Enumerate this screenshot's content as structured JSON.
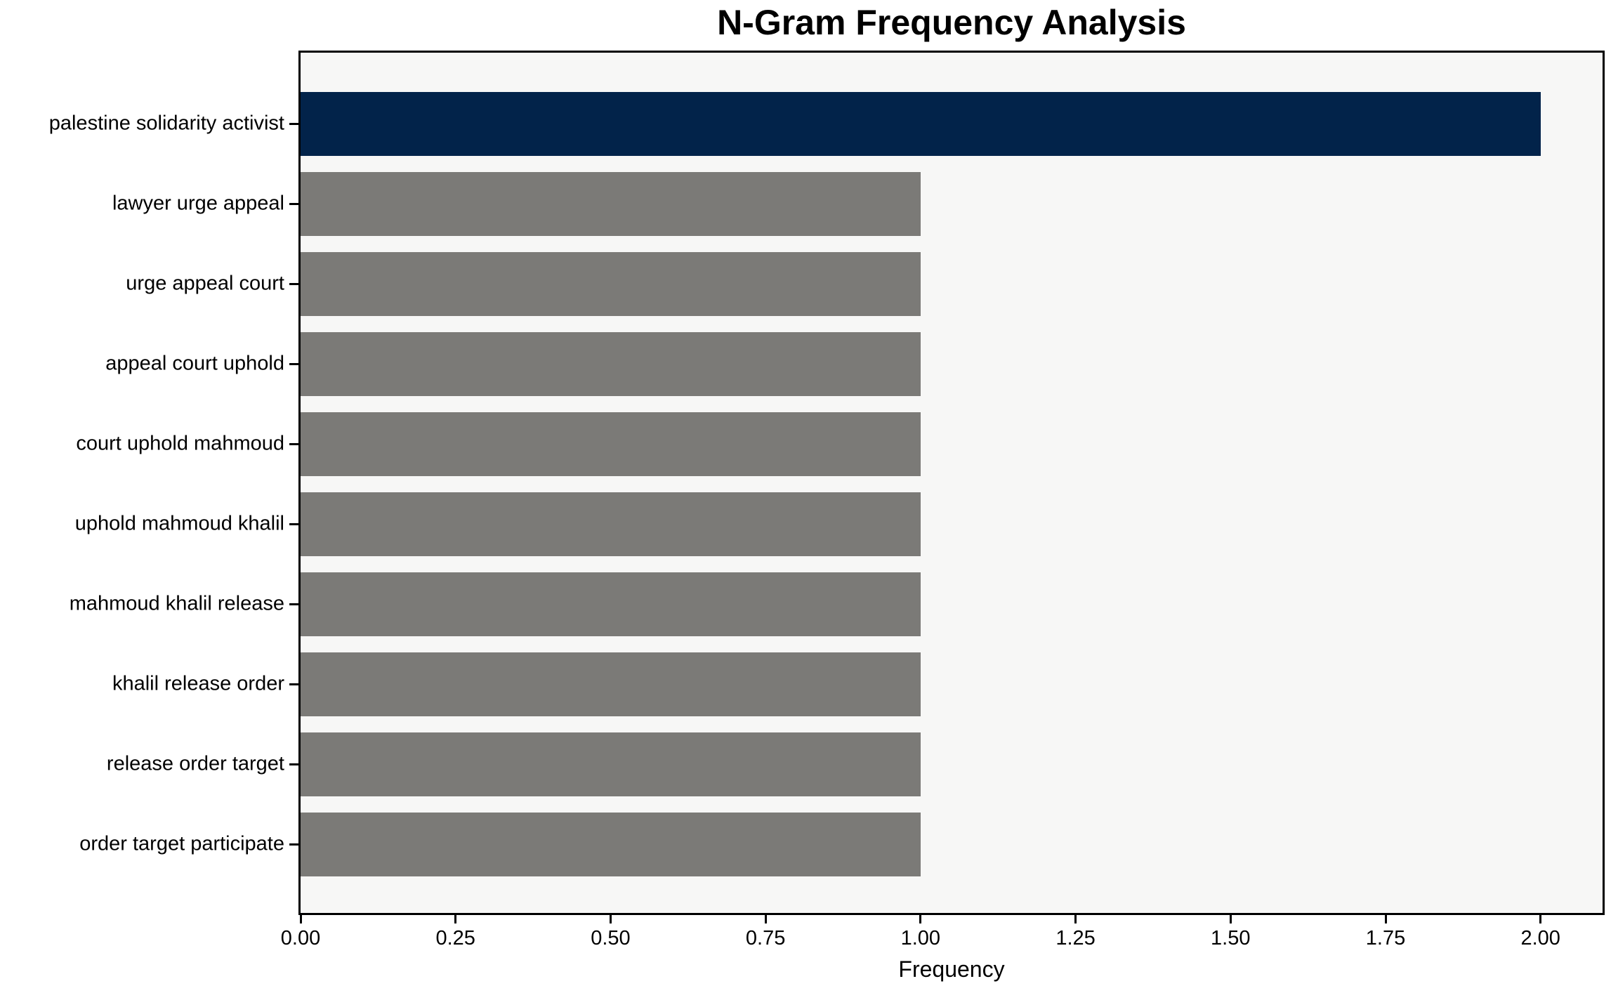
{
  "chart_data": {
    "type": "bar",
    "orientation": "horizontal",
    "title": "N-Gram Frequency Analysis",
    "xlabel": "Frequency",
    "ylabel": "",
    "categories": [
      "palestine solidarity activist",
      "lawyer urge appeal",
      "urge appeal court",
      "appeal court uphold",
      "court uphold mahmoud",
      "uphold mahmoud khalil",
      "mahmoud khalil release",
      "khalil release order",
      "release order target",
      "order target participate"
    ],
    "values": [
      2,
      1,
      1,
      1,
      1,
      1,
      1,
      1,
      1,
      1
    ],
    "bar_colors": [
      "#02234a",
      "#7b7a77",
      "#7b7a77",
      "#7b7a77",
      "#7b7a77",
      "#7b7a77",
      "#7b7a77",
      "#7b7a77",
      "#7b7a77",
      "#7b7a77"
    ],
    "x_ticks": [
      {
        "value": 0.0,
        "label": "0.00"
      },
      {
        "value": 0.25,
        "label": "0.25"
      },
      {
        "value": 0.5,
        "label": "0.50"
      },
      {
        "value": 0.75,
        "label": "0.75"
      },
      {
        "value": 1.0,
        "label": "1.00"
      },
      {
        "value": 1.25,
        "label": "1.25"
      },
      {
        "value": 1.5,
        "label": "1.50"
      },
      {
        "value": 1.75,
        "label": "1.75"
      },
      {
        "value": 2.0,
        "label": "2.00"
      }
    ],
    "xlim": [
      0,
      2.1
    ],
    "grid": false,
    "legend": null,
    "colors": {
      "highlight_bar": "#02234a",
      "default_bar": "#7b7a77",
      "plot_background": "#f7f7f6",
      "figure_background": "#ffffff",
      "spine": "#000000",
      "text": "#000000"
    }
  }
}
